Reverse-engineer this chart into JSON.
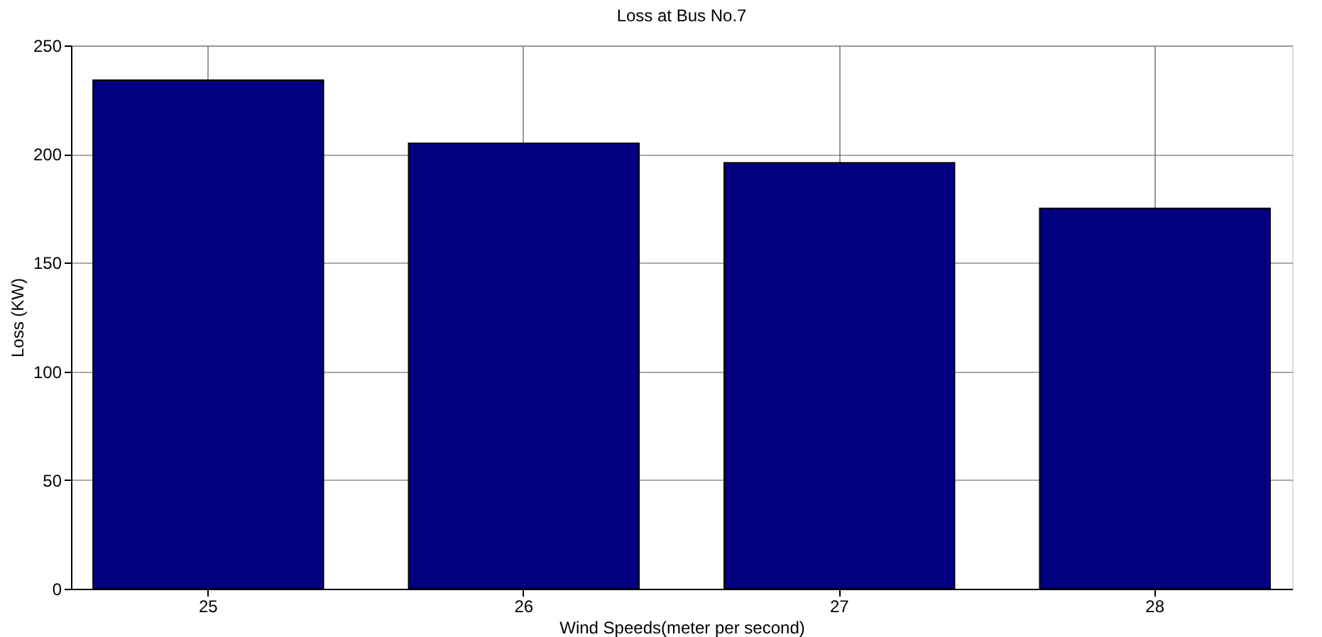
{
  "chart_data": {
    "type": "bar",
    "title": "Loss at Bus No.7",
    "xlabel": "Wind Speeds(meter per second)",
    "ylabel": "Loss (KW)",
    "categories": [
      "25",
      "26",
      "27",
      "28"
    ],
    "values": [
      234,
      205,
      196,
      175
    ],
    "color": "#000080",
    "ylim": [
      0,
      250
    ],
    "yticks": [
      0,
      50,
      100,
      150,
      200,
      250
    ],
    "grid": true
  }
}
